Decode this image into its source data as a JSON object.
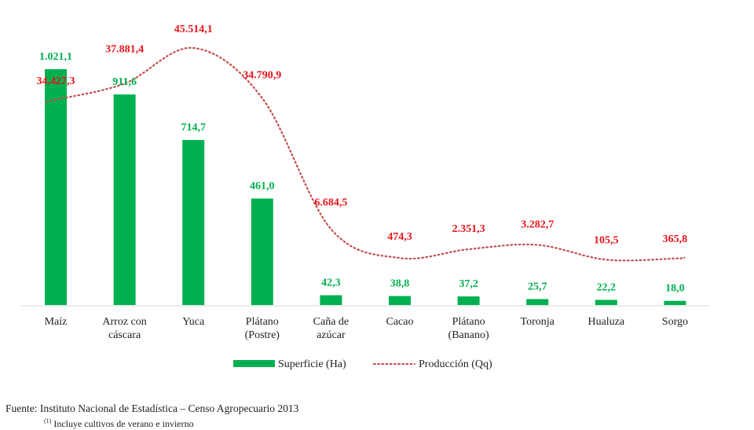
{
  "chart_data": {
    "type": "bar+line",
    "categories": [
      [
        "Maíz"
      ],
      [
        "Arroz con",
        "cáscara"
      ],
      [
        "Yuca"
      ],
      [
        "Plátano",
        "(Postre)"
      ],
      [
        "Caña de",
        "azúcar"
      ],
      [
        "Cacao"
      ],
      [
        "Plátano",
        "(Banano)"
      ],
      [
        "Toronja"
      ],
      [
        "Hualuza"
      ],
      [
        "Sorgo"
      ]
    ],
    "series": [
      {
        "name": "Superficie (Ha)",
        "type": "bar",
        "color": "#00b050",
        "values": [
          1021.1,
          911.6,
          714.7,
          461.0,
          42.3,
          38.8,
          37.2,
          25.7,
          22.2,
          18.0
        ],
        "labels": [
          "1.021,1",
          "911,6",
          "714,7",
          "461,0",
          "42,3",
          "38,8",
          "37,2",
          "25,7",
          "22,2",
          "18,0"
        ]
      },
      {
        "name": "Producción (Qq)",
        "type": "line",
        "style": "dotted",
        "color": "#c0504d",
        "label_color": "#e8141c",
        "values": [
          34427.3,
          37881.4,
          45514.1,
          34790.9,
          6684.5,
          474.3,
          2351.3,
          3282.7,
          105.5,
          365.8
        ],
        "labels": [
          "34.427,3",
          "37.881,4",
          "45.514,1",
          "34.790,9",
          "6.684,5",
          "474,3",
          "2.351,3",
          "3.282,7",
          "105,5",
          "365,8"
        ]
      }
    ],
    "legend_position": "bottom",
    "grid": false
  },
  "source": "Fuente: Instituto Nacional de Estadística – Censo Agropecuario 2013",
  "footnote_mark": "(1)",
  "footnote": " Incluye cultivos de verano e invierno"
}
